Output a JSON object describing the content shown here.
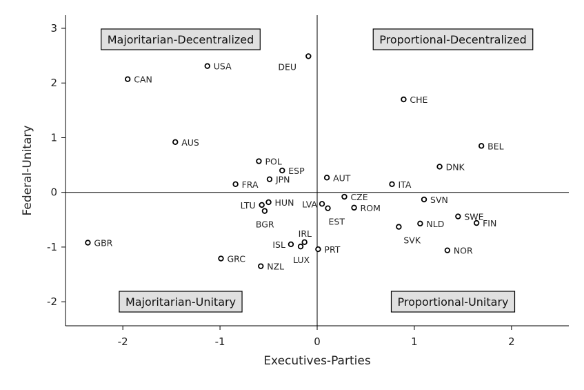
{
  "chart_data": {
    "type": "scatter",
    "xlabel": "Executives-Parties",
    "ylabel": "Federal-Unitary",
    "xlim": [
      -2.59,
      2.59
    ],
    "ylim": [
      -2.44,
      3.24
    ],
    "xticks": [
      -2,
      -1,
      0,
      1,
      2
    ],
    "yticks": [
      -2,
      -1,
      0,
      1,
      2,
      3
    ],
    "grid": false,
    "reference_lines": {
      "x": 0,
      "y": 0
    },
    "marker": "open-circle",
    "color": "#000000",
    "quadrant_labels": [
      {
        "text": "Majoritarian-Decentralized",
        "quadrant": "top-left"
      },
      {
        "text": "Proportional-Decentralized",
        "quadrant": "top-right"
      },
      {
        "text": "Majoritarian-Unitary",
        "quadrant": "bottom-left"
      },
      {
        "text": "Proportional-Unitary",
        "quadrant": "bottom-right"
      }
    ],
    "quadrant_label_fill": "#e0e0e0",
    "points": [
      {
        "label": "CAN",
        "x": -1.95,
        "y": 2.07
      },
      {
        "label": "USA",
        "x": -1.13,
        "y": 2.31
      },
      {
        "label": "DEU",
        "x": -0.09,
        "y": 2.49
      },
      {
        "label": "CHE",
        "x": 0.89,
        "y": 1.7
      },
      {
        "label": "BEL",
        "x": 1.69,
        "y": 0.85
      },
      {
        "label": "AUS",
        "x": -1.46,
        "y": 0.92
      },
      {
        "label": "POL",
        "x": -0.6,
        "y": 0.57
      },
      {
        "label": "ESP",
        "x": -0.36,
        "y": 0.4
      },
      {
        "label": "JPN",
        "x": -0.49,
        "y": 0.24
      },
      {
        "label": "FRA",
        "x": -0.84,
        "y": 0.15
      },
      {
        "label": "AUT",
        "x": 0.1,
        "y": 0.27
      },
      {
        "label": "DNK",
        "x": 1.26,
        "y": 0.47
      },
      {
        "label": "ITA",
        "x": 0.77,
        "y": 0.15
      },
      {
        "label": "CZE",
        "x": 0.28,
        "y": -0.08
      },
      {
        "label": "LVA",
        "x": 0.05,
        "y": -0.21
      },
      {
        "label": "EST",
        "x": 0.11,
        "y": -0.29
      },
      {
        "label": "ROM",
        "x": 0.38,
        "y": -0.28
      },
      {
        "label": "HUN",
        "x": -0.5,
        "y": -0.18
      },
      {
        "label": "LTU",
        "x": -0.57,
        "y": -0.23
      },
      {
        "label": "BGR",
        "x": -0.54,
        "y": -0.34
      },
      {
        "label": "SVN",
        "x": 1.1,
        "y": -0.13
      },
      {
        "label": "SWE",
        "x": 1.45,
        "y": -0.44
      },
      {
        "label": "FIN",
        "x": 1.64,
        "y": -0.56
      },
      {
        "label": "NLD",
        "x": 1.06,
        "y": -0.57
      },
      {
        "label": "SVK",
        "x": 0.84,
        "y": -0.63
      },
      {
        "label": "NOR",
        "x": 1.34,
        "y": -1.06
      },
      {
        "label": "GBR",
        "x": -2.36,
        "y": -0.92
      },
      {
        "label": "GRC",
        "x": -0.99,
        "y": -1.21
      },
      {
        "label": "NZL",
        "x": -0.58,
        "y": -1.35
      },
      {
        "label": "ISL",
        "x": -0.27,
        "y": -0.95
      },
      {
        "label": "IRL",
        "x": -0.13,
        "y": -0.91
      },
      {
        "label": "LUX",
        "x": -0.17,
        "y": -0.99
      },
      {
        "label": "PRT",
        "x": 0.01,
        "y": -1.04
      }
    ]
  }
}
